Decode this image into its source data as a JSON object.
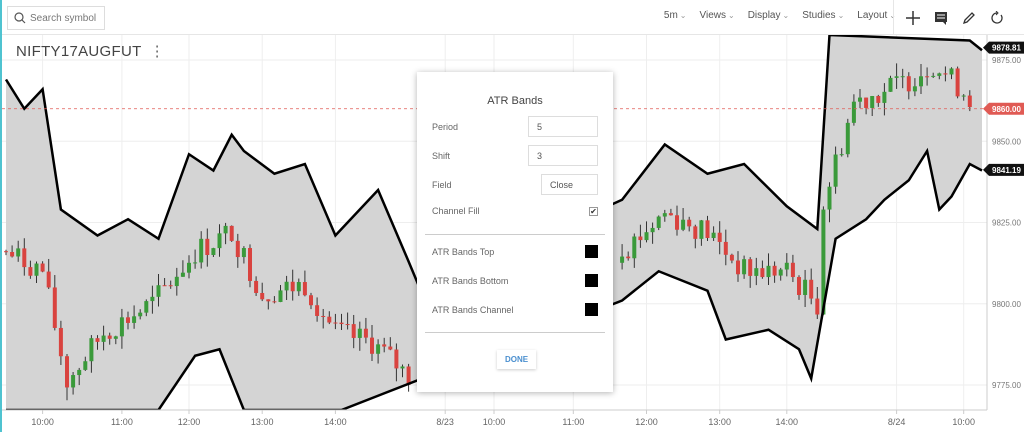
{
  "toolbar": {
    "search_placeholder": "Search symbol",
    "menus": [
      "5m",
      "Views",
      "Display",
      "Studies",
      "Layout"
    ]
  },
  "symbol": "NIFTY17AUGFUT",
  "price_labels": {
    "high": "9878.81",
    "last": "9860.00",
    "low": "9841.19"
  },
  "colors": {
    "up": "#3a9a3a",
    "down": "#d9433f",
    "band": "#000000",
    "fill": "#d4d4d4",
    "last": "#e05a54"
  },
  "dialog": {
    "title": "ATR Bands",
    "period_label": "Period",
    "period": "5",
    "shift_label": "Shift",
    "shift": "3",
    "field_label": "Field",
    "field": "Close",
    "fill_label": "Channel Fill",
    "fill_checked": true,
    "top_label": "ATR Bands Top",
    "bottom_label": "ATR Bands Bottom",
    "channel_label": "ATR Bands Channel",
    "done": "DONE"
  },
  "chart_data": {
    "type": "candlestick",
    "y_ticks": [
      9875,
      9850,
      9825,
      9800,
      9775
    ],
    "ylim": [
      9763,
      9880
    ],
    "x_ticks": [
      {
        "bar": 6,
        "label": "10:00"
      },
      {
        "bar": 19,
        "label": "11:00"
      },
      {
        "bar": 30,
        "label": "12:00"
      },
      {
        "bar": 42,
        "label": "13:00"
      },
      {
        "bar": 54,
        "label": "14:00"
      },
      {
        "bar": 72,
        "label": "8/23"
      },
      {
        "bar": 80,
        "label": "10:00"
      },
      {
        "bar": 93,
        "label": "11:00"
      },
      {
        "bar": 105,
        "label": "12:00"
      },
      {
        "bar": 117,
        "label": "13:00"
      },
      {
        "bar": 128,
        "label": "14:00"
      },
      {
        "bar": 146,
        "label": "8/24"
      },
      {
        "bar": 157,
        "label": "10:00"
      }
    ],
    "last_price": 9860,
    "close_path": [
      [
        0,
        9816
      ],
      [
        6,
        9810
      ],
      [
        10,
        9776
      ],
      [
        16,
        9791
      ],
      [
        24,
        9800
      ],
      [
        31,
        9816
      ],
      [
        37,
        9822
      ],
      [
        42,
        9803
      ],
      [
        49,
        9806
      ],
      [
        54,
        9791
      ],
      [
        60,
        9788
      ],
      [
        67,
        9776
      ],
      [
        101,
        9816
      ],
      [
        108,
        9828
      ],
      [
        115,
        9822
      ],
      [
        121,
        9810
      ],
      [
        128,
        9810
      ],
      [
        133,
        9800
      ],
      [
        134,
        9831
      ],
      [
        139,
        9862
      ],
      [
        147,
        9868
      ],
      [
        152,
        9874
      ],
      [
        159,
        9862
      ]
    ],
    "upper_band": [
      [
        0,
        9869
      ],
      [
        3,
        9860
      ],
      [
        6,
        9866
      ],
      [
        9,
        9829
      ],
      [
        15,
        9821
      ],
      [
        20,
        9826
      ],
      [
        25,
        9820
      ],
      [
        30,
        9846
      ],
      [
        34,
        9841
      ],
      [
        37,
        9852
      ],
      [
        39,
        9847
      ],
      [
        44,
        9840
      ],
      [
        49,
        9843
      ],
      [
        54,
        9821
      ],
      [
        61,
        9835
      ],
      [
        66,
        9813
      ],
      [
        68,
        9804
      ],
      [
        101,
        9832
      ],
      [
        108,
        9849
      ],
      [
        115,
        9840
      ],
      [
        121,
        9843
      ],
      [
        128,
        9830
      ],
      [
        133,
        9823
      ],
      [
        135,
        9883
      ],
      [
        158,
        9881
      ],
      [
        160,
        9878
      ]
    ],
    "lower_band": [
      [
        0,
        9740
      ],
      [
        20,
        9745
      ],
      [
        25,
        9767
      ],
      [
        31,
        9784
      ],
      [
        35,
        9786
      ],
      [
        39,
        9767
      ],
      [
        52,
        9767
      ],
      [
        55,
        9750
      ],
      [
        101,
        9801
      ],
      [
        107,
        9810
      ],
      [
        115,
        9804
      ],
      [
        118,
        9789
      ],
      [
        125,
        9792
      ],
      [
        130,
        9786
      ],
      [
        132,
        9777
      ],
      [
        136,
        9820
      ],
      [
        141,
        9826
      ],
      [
        144,
        9832
      ],
      [
        148,
        9838
      ],
      [
        151,
        9847
      ],
      [
        153,
        9829
      ],
      [
        155,
        9833
      ],
      [
        158,
        9843
      ],
      [
        160,
        9841
      ]
    ]
  }
}
